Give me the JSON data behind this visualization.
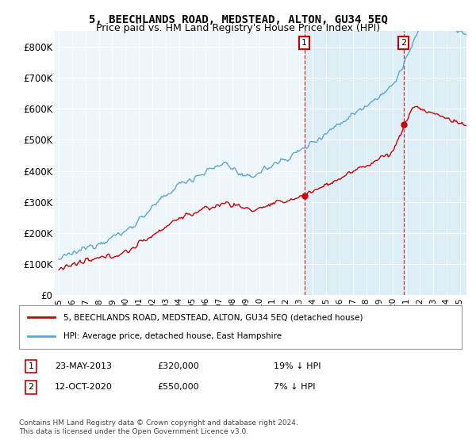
{
  "title": "5, BEECHLANDS ROAD, MEDSTEAD, ALTON, GU34 5EQ",
  "subtitle": "Price paid vs. HM Land Registry's House Price Index (HPI)",
  "ylim": [
    0,
    850000
  ],
  "yticks": [
    0,
    100000,
    200000,
    300000,
    400000,
    500000,
    600000,
    700000,
    800000
  ],
  "ytick_labels": [
    "£0",
    "£100K",
    "£200K",
    "£300K",
    "£400K",
    "£500K",
    "£600K",
    "£700K",
    "£800K"
  ],
  "xlim_start": 1994.7,
  "xlim_end": 2025.5,
  "hpi_color": "#5aa8d8",
  "hpi_fill_color": "#d0e8f5",
  "price_color": "#cc0000",
  "sale1_date": 2013.38,
  "sale1_price": 320000,
  "sale2_date": 2020.79,
  "sale2_price": 550000,
  "highlight_start": 2013.38,
  "legend_label1": "5, BEECHLANDS ROAD, MEDSTEAD, ALTON, GU34 5EQ (detached house)",
  "legend_label2": "HPI: Average price, detached house, East Hampshire",
  "annotation1_label": "1",
  "annotation1_date_str": "23-MAY-2013",
  "annotation1_price_str": "£320,000",
  "annotation1_pct_str": "19% ↓ HPI",
  "annotation2_label": "2",
  "annotation2_date_str": "12-OCT-2020",
  "annotation2_price_str": "£550,000",
  "annotation2_pct_str": "7% ↓ HPI",
  "footer": "Contains HM Land Registry data © Crown copyright and database right 2024.\nThis data is licensed under the Open Government Licence v3.0.",
  "background_color": "#eef5fb",
  "grid_color": "#ffffff"
}
